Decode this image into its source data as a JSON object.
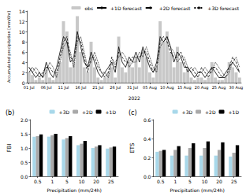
{
  "chart_data": [
    {
      "type": "line",
      "ylabel": "Accumulated precipitation [mm/6hr]",
      "xlabel": "2022",
      "categories": [
        "01 Jul",
        null,
        null,
        null,
        null,
        "06 Jul",
        null,
        null,
        null,
        null,
        "11 Jul",
        null,
        null,
        null,
        null,
        "16 Jul",
        null,
        null,
        null,
        null,
        "21 Jul",
        null,
        null,
        null,
        null,
        "26 Jul",
        null,
        null,
        null,
        null,
        "31 Jul",
        null,
        null,
        null,
        null,
        "05 Aug",
        null,
        null,
        null,
        null,
        "10 Aug",
        null,
        null,
        null,
        null,
        "15 Aug",
        null,
        null,
        null,
        null,
        "20 Aug",
        null,
        null,
        null,
        null,
        "25 Aug",
        null,
        null,
        null,
        null,
        "30 Aug",
        null
      ],
      "ylim": [
        0,
        14
      ],
      "yticks": [
        0,
        2,
        4,
        6,
        8,
        10,
        12,
        14
      ],
      "grid": false,
      "legend": "top right",
      "series": [
        {
          "name": "obs",
          "type": "bar",
          "color": "#c8c8c8",
          "values": [
            2,
            1.5,
            0.5,
            1,
            0.5,
            3,
            1,
            0.5,
            2,
            4,
            12,
            10,
            3,
            4,
            13,
            6,
            3,
            2,
            8,
            3,
            1,
            0.5,
            1,
            2,
            3,
            1,
            9,
            3,
            2,
            4,
            3,
            5,
            3,
            6.5,
            5,
            2,
            1,
            3,
            12,
            8,
            10,
            6,
            3,
            7,
            4,
            2,
            3,
            1,
            0.5,
            1,
            1,
            0.5,
            1,
            4,
            1,
            0.5,
            0.5,
            1,
            4,
            3,
            2,
            1
          ]
        },
        {
          "name": "+1D forecast",
          "type": "line",
          "color": "#000000",
          "line_style": "solid",
          "values": [
            3,
            2,
            1,
            2,
            1,
            4,
            2,
            1,
            3,
            6,
            9,
            8,
            4,
            5,
            10,
            7,
            4,
            3,
            6,
            4,
            2,
            1,
            2,
            3,
            4,
            2,
            7,
            4,
            3,
            5,
            4,
            6,
            4,
            7,
            5,
            3,
            2,
            4,
            9,
            8,
            9,
            7,
            4,
            6,
            5,
            3,
            3,
            2,
            1,
            2,
            2,
            1,
            2,
            3,
            2,
            1,
            1,
            2,
            3,
            4,
            3,
            2
          ]
        },
        {
          "name": "+2D forecast",
          "type": "line",
          "color": "#000000",
          "line_style": "dashed",
          "values": [
            2,
            3,
            2,
            1,
            2,
            3,
            3,
            2,
            2,
            5,
            8,
            9,
            5,
            4,
            9,
            8,
            5,
            2,
            5,
            5,
            3,
            2,
            1,
            2,
            5,
            3,
            6,
            5,
            4,
            4,
            5,
            5,
            5,
            6,
            6,
            4,
            2,
            3,
            8,
            9,
            8,
            6,
            5,
            5,
            6,
            4,
            2,
            3,
            2,
            1,
            3,
            2,
            1,
            3,
            3,
            2,
            1,
            1,
            3,
            5,
            4,
            2
          ]
        },
        {
          "name": "+3D forecast",
          "type": "line",
          "color": "#000000",
          "line_style": "dotted",
          "values": [
            3,
            2,
            3,
            2,
            1,
            2,
            4,
            3,
            1,
            4,
            7,
            8,
            6,
            3,
            8,
            9,
            6,
            3,
            4,
            6,
            4,
            2,
            2,
            1,
            4,
            4,
            5,
            6,
            5,
            3,
            4,
            4,
            6,
            5,
            7,
            5,
            3,
            2,
            7,
            8,
            9,
            7,
            6,
            4,
            5,
            5,
            3,
            2,
            3,
            2,
            2,
            3,
            2,
            2,
            4,
            3,
            2,
            1,
            2,
            4,
            5,
            3
          ]
        }
      ]
    },
    {
      "type": "bar",
      "title": "(b)",
      "ylabel": "FBI",
      "xlabel": "Precipitation (mm/24h)",
      "categories": [
        "0.5",
        "1",
        "5",
        "10",
        "20",
        "25"
      ],
      "ylim": [
        0,
        2
      ],
      "yticks": [
        {
          "value": 0,
          "label": "0.0"
        },
        {
          "value": 0.5,
          "label": "0.5"
        },
        {
          "value": 1,
          "label": "1.0"
        },
        {
          "value": 1.5,
          "label": "1.5"
        },
        {
          "value": 2,
          "label": "2.0"
        }
      ],
      "grid": false,
      "legend": "top right",
      "series": [
        {
          "name": "+3D",
          "color": "#a8d8ea",
          "values": [
            1.4,
            1.4,
            1.3,
            1.1,
            1.0,
            0.98
          ]
        },
        {
          "name": "+2D",
          "color": "#a9a9a9",
          "values": [
            1.42,
            1.45,
            1.35,
            1.15,
            1.05,
            1.02
          ]
        },
        {
          "name": "+1D",
          "color": "#000000",
          "values": [
            1.48,
            1.5,
            1.42,
            1.25,
            1.1,
            1.05
          ]
        }
      ]
    },
    {
      "type": "bar",
      "title": "(c)",
      "ylabel": "ETS",
      "xlabel": "Precipitation (mm/24h)",
      "categories": [
        "0.5",
        "1",
        "5",
        "10",
        "20",
        "25"
      ],
      "ylim": [
        0,
        0.6
      ],
      "yticks": [
        {
          "value": 0,
          "label": "0.0"
        },
        {
          "value": 0.2,
          "label": "0.2"
        },
        {
          "value": 0.4,
          "label": "0.4"
        },
        {
          "value": 0.6,
          "label": "0.6"
        }
      ],
      "grid": false,
      "legend": "top right",
      "series": [
        {
          "name": "+3D",
          "color": "#a8d8ea",
          "values": [
            0.26,
            0.22,
            0.22,
            0.22,
            0.22,
            0.21
          ]
        },
        {
          "name": "+2D",
          "color": "#a9a9a9",
          "values": [
            0.27,
            0.28,
            0.3,
            0.3,
            0.28,
            0.25
          ]
        },
        {
          "name": "+1D",
          "color": "#000000",
          "values": [
            0.28,
            0.32,
            0.35,
            0.37,
            0.36,
            0.33
          ]
        }
      ]
    }
  ]
}
